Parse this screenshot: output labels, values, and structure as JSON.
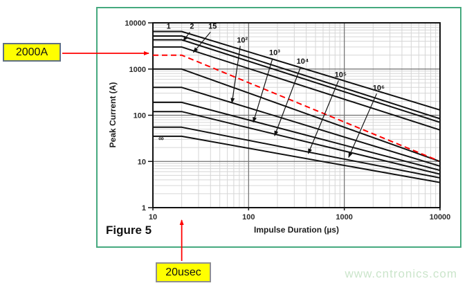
{
  "page": {
    "watermark": "www.cntronics.com"
  },
  "frame": {
    "color": "#45a97e"
  },
  "figure": {
    "label": "Figure 5"
  },
  "callouts": {
    "current": {
      "text": "2000A",
      "arrow_color": "#ff0000"
    },
    "duration": {
      "text": "20usec",
      "arrow_color": "#ff0000"
    },
    "box_color": "#ffff00"
  },
  "chart_data": {
    "type": "line",
    "title": "",
    "x_axis": {
      "label": "Impulse Duration (µs)",
      "scale": "log",
      "range": [
        10,
        10000
      ],
      "ticks": [
        "10",
        "100",
        "1000",
        "10000"
      ]
    },
    "y_axis": {
      "label": "Peak Current (A)",
      "scale": "log",
      "range": [
        1,
        10000
      ],
      "ticks": [
        "1",
        "10",
        "100",
        "1000",
        "10000"
      ]
    },
    "grid": true,
    "legend": "inline-curve-labels",
    "colors": {
      "curve": "#111111",
      "grid_minor": "#d6d6d6",
      "grid_major": "#6f6f6f",
      "border": "#111111",
      "tick_text": "#2a2a2a",
      "reference": "#ff0000"
    },
    "series_note": "Each curve: flat from 10 to 20 µs, then straight in log-log down to 10000 µs. Values in amperes.",
    "series": [
      {
        "label": "1",
        "points": [
          [
            10,
            6500
          ],
          [
            20,
            6500
          ],
          [
            10000,
            130
          ]
        ],
        "label_at": [
          14.6,
          8600
        ],
        "arrow_to": null
      },
      {
        "label": "2",
        "points": [
          [
            10,
            5200
          ],
          [
            20,
            5200
          ],
          [
            10000,
            84
          ]
        ],
        "label_at": [
          25.6,
          8600
        ],
        "arrow_to": [
          20.8,
          4100
        ]
      },
      {
        "label": "",
        "points": [
          [
            10,
            4300
          ],
          [
            20,
            4300
          ],
          [
            10000,
            70
          ]
        ],
        "label_at": null,
        "arrow_to": null
      },
      {
        "label": "15",
        "points": [
          [
            10,
            3000
          ],
          [
            20,
            3000
          ],
          [
            10000,
            48
          ]
        ],
        "label_at": [
          42,
          8600
        ],
        "arrow_to": [
          26.5,
          2300
        ]
      },
      {
        "label": "10²",
        "points": [
          [
            10,
            1000
          ],
          [
            20,
            1000
          ],
          [
            10000,
            10
          ]
        ],
        "label_at": [
          86,
          4300
        ],
        "arrow_to": [
          67,
          185
        ]
      },
      {
        "label": "10³",
        "points": [
          [
            10,
            400
          ],
          [
            20,
            400
          ],
          [
            10000,
            7.9
          ]
        ],
        "label_at": [
          187,
          2300
        ],
        "arrow_to": [
          112,
          71
        ]
      },
      {
        "label": "10⁴",
        "points": [
          [
            10,
            190
          ],
          [
            20,
            190
          ],
          [
            10000,
            6.4
          ]
        ],
        "label_at": [
          367,
          1500
        ],
        "arrow_to": [
          187,
          36
        ]
      },
      {
        "label": "10⁵",
        "points": [
          [
            10,
            120
          ],
          [
            20,
            120
          ],
          [
            10000,
            5.3
          ]
        ],
        "label_at": [
          915,
          770
        ],
        "arrow_to": [
          420,
          14.8
        ]
      },
      {
        "label": "10⁶",
        "points": [
          [
            10,
            55
          ],
          [
            20,
            55
          ],
          [
            10000,
            4.4
          ]
        ],
        "label_at": [
          2290,
          400
        ],
        "arrow_to": [
          1110,
          12.3
        ]
      },
      {
        "label": "∞",
        "points": [
          [
            10,
            35
          ],
          [
            20,
            35
          ],
          [
            10000,
            3.5
          ]
        ],
        "label_at": [
          12.2,
          32
        ],
        "arrow_to": null
      }
    ],
    "reference_line": {
      "name": "2000A at 20usec example",
      "style": "dashed",
      "color": "#ff0000",
      "points": [
        [
          10,
          2000
        ],
        [
          20,
          2000
        ],
        [
          9600,
          10.4
        ]
      ]
    }
  }
}
